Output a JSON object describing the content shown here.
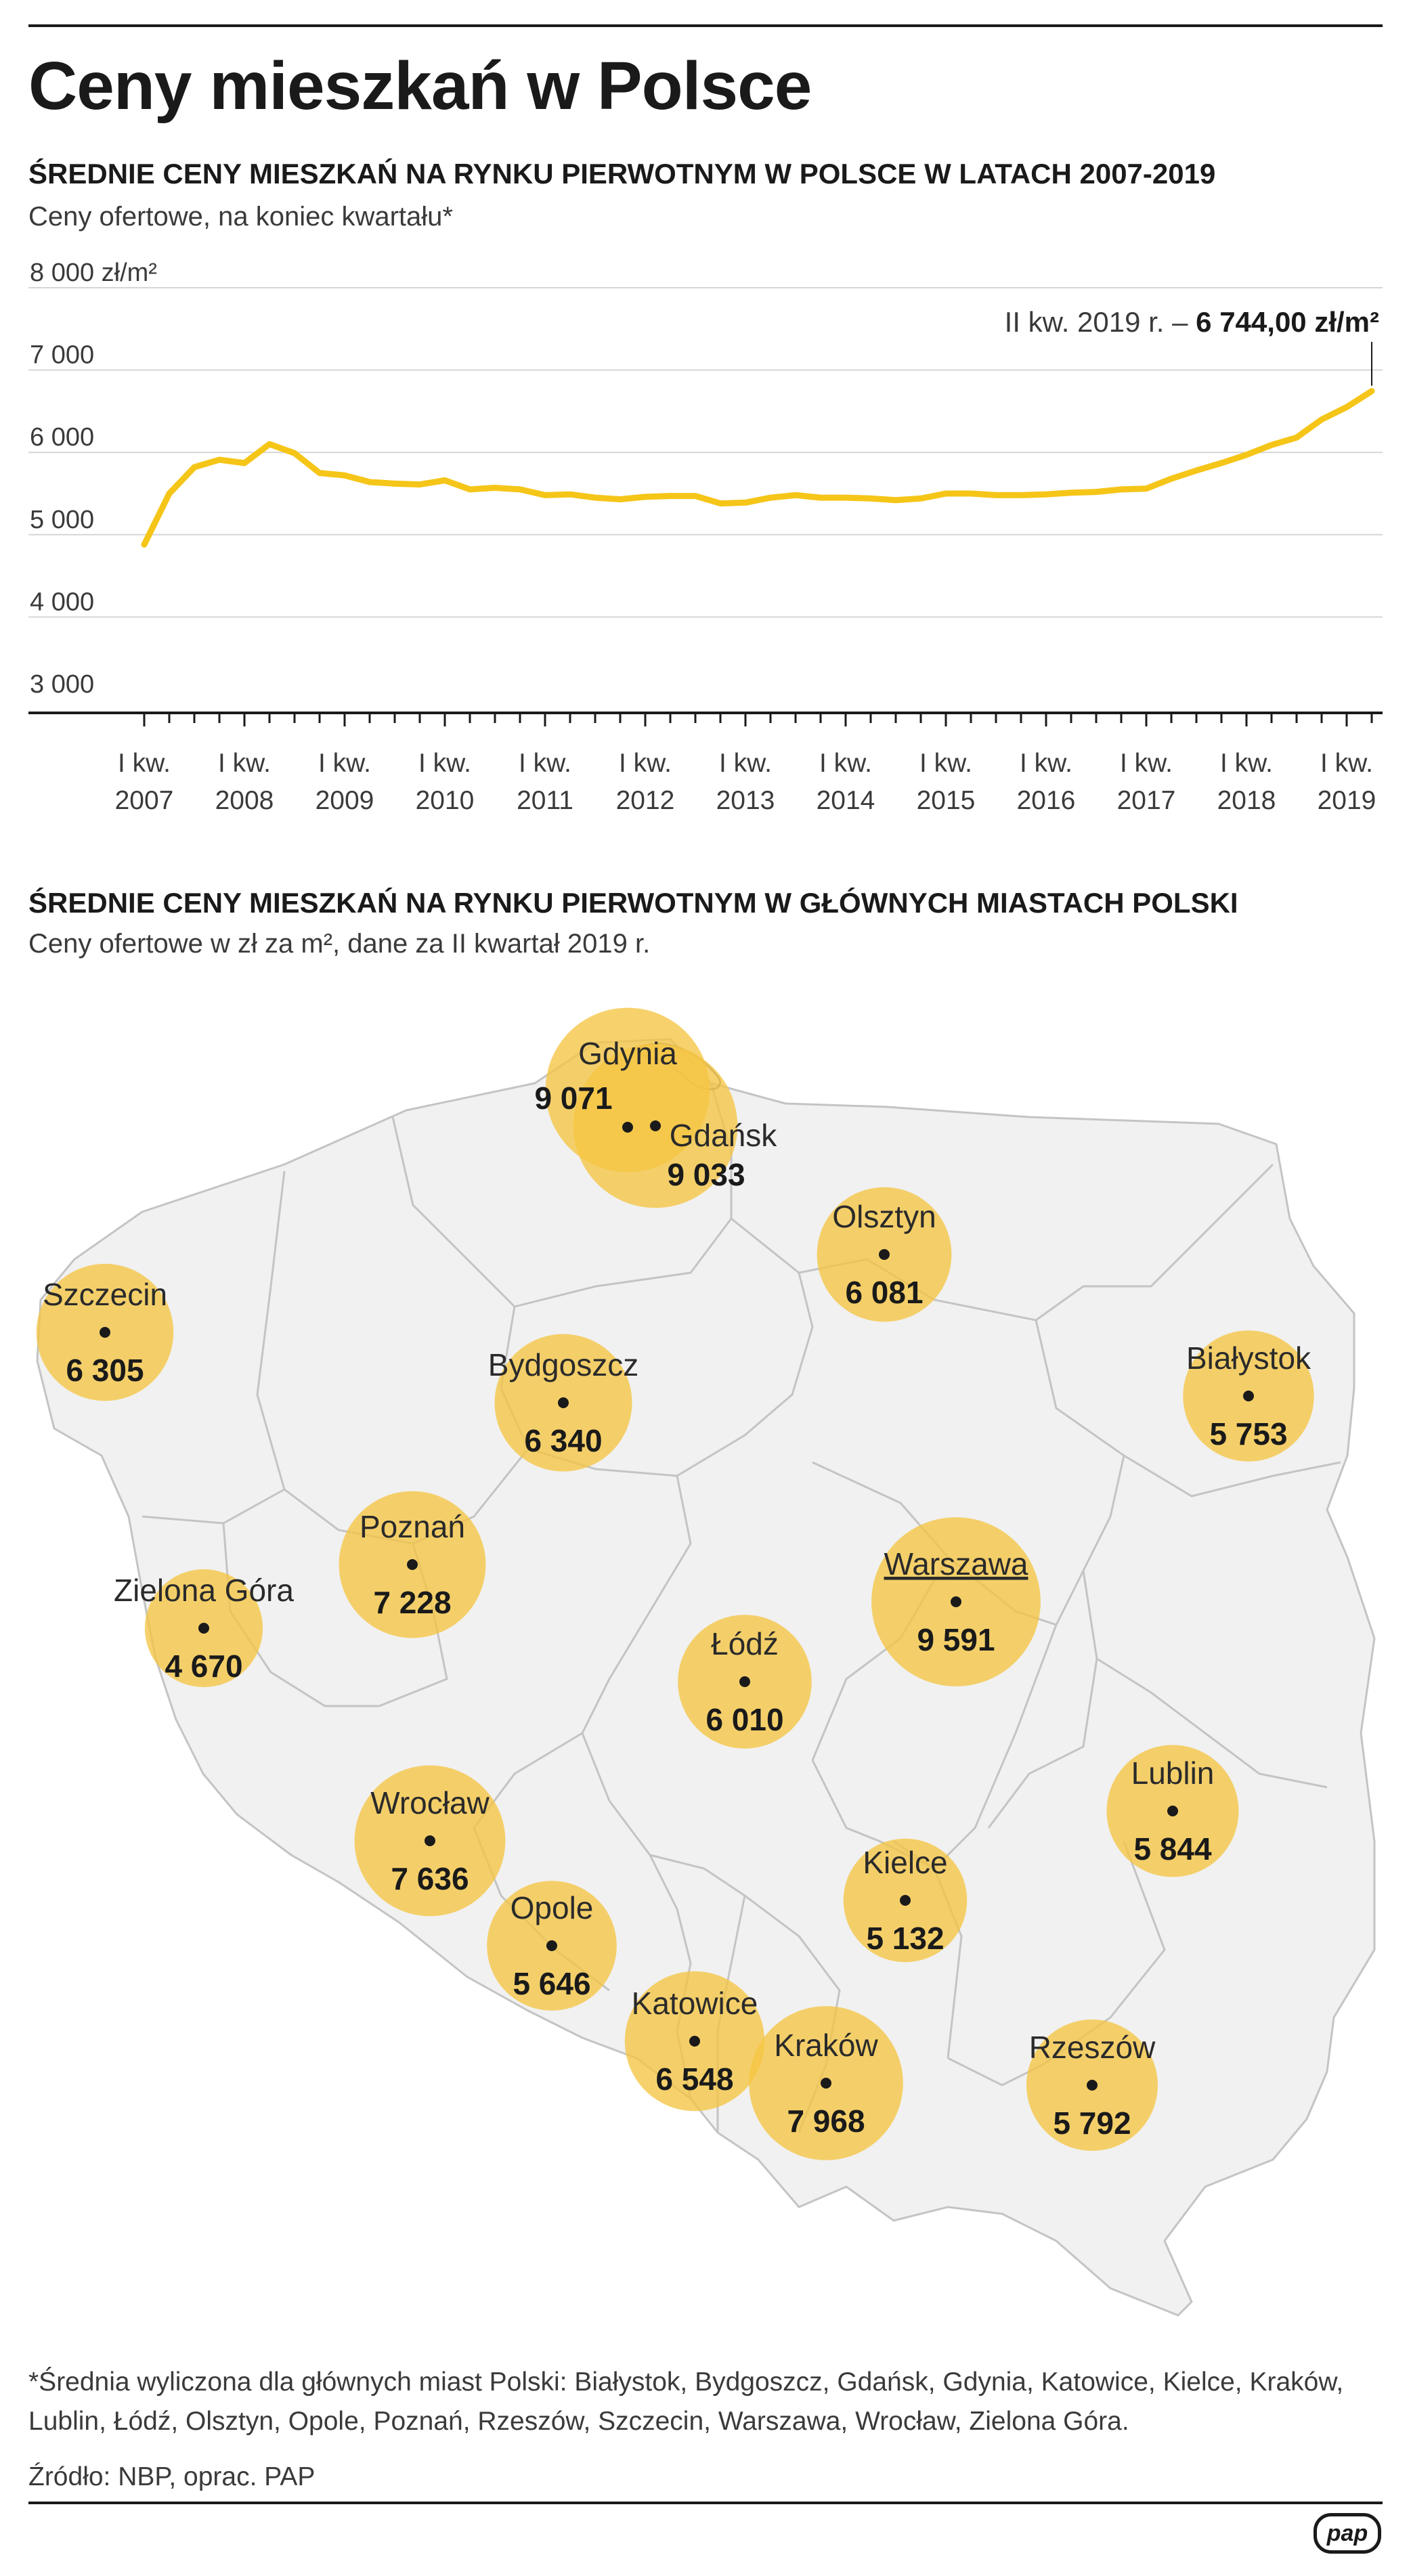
{
  "title": "Ceny mieszkań w Polsce",
  "line_chart": {
    "heading": "ŚREDNIE CENY MIESZKAŃ NA RYNKU PIERWOTNYM W POLSCE W LATACH 2007-2019",
    "subtitle": "Ceny ofertowe, na koniec kwartału*",
    "annotation_prefix": "II kw. 2019 r. – ",
    "annotation_value": "6 744,00 zł/m²",
    "y_tick_labels": [
      "8 000 zł/m²",
      "7 000",
      "6 000",
      "5 000",
      "4 000",
      "3 000"
    ],
    "x_tick_prefix": "I kw.",
    "x_tick_years": [
      "2007",
      "2008",
      "2009",
      "2010",
      "2011",
      "2012",
      "2013",
      "2014",
      "2015",
      "2016",
      "2017",
      "2018",
      "2019"
    ]
  },
  "map_chart": {
    "heading": "ŚREDNIE CENY MIESZKAŃ NA RYNKU PIERWOTNYM W GŁÓWNYCH MIASTACH POLSKI",
    "subtitle": "Ceny ofertowe w zł za m², dane za II kwartał 2019 r."
  },
  "chart_data": [
    {
      "type": "line",
      "title": "ŚREDNIE CENY MIESZKAŃ NA RYNKU PIERWOTNYM W POLSCE W LATACH 2007-2019",
      "ylabel": "zł/m²",
      "ylim": [
        3000,
        8000
      ],
      "yticks": [
        3000,
        4000,
        5000,
        6000,
        7000,
        8000
      ],
      "grid": true,
      "x": [
        "I kw. 2007",
        "II kw. 2007",
        "III kw. 2007",
        "IV kw. 2007",
        "I kw. 2008",
        "II kw. 2008",
        "III kw. 2008",
        "IV kw. 2008",
        "I kw. 2009",
        "II kw. 2009",
        "III kw. 2009",
        "IV kw. 2009",
        "I kw. 2010",
        "II kw. 2010",
        "III kw. 2010",
        "IV kw. 2010",
        "I kw. 2011",
        "II kw. 2011",
        "III kw. 2011",
        "IV kw. 2011",
        "I kw. 2012",
        "II kw. 2012",
        "III kw. 2012",
        "IV kw. 2012",
        "I kw. 2013",
        "II kw. 2013",
        "III kw. 2013",
        "IV kw. 2013",
        "I kw. 2014",
        "II kw. 2014",
        "III kw. 2014",
        "IV kw. 2014",
        "I kw. 2015",
        "II kw. 2015",
        "III kw. 2015",
        "IV kw. 2015",
        "I kw. 2016",
        "II kw. 2016",
        "III kw. 2016",
        "IV kw. 2016",
        "I kw. 2017",
        "II kw. 2017",
        "III kw. 2017",
        "IV kw. 2017",
        "I kw. 2018",
        "II kw. 2018",
        "III kw. 2018",
        "IV kw. 2018",
        "I kw. 2019",
        "II kw. 2019"
      ],
      "series": [
        {
          "name": "",
          "color": "#f5c518",
          "values": [
            4880,
            5500,
            5820,
            5910,
            5870,
            6100,
            5990,
            5750,
            5720,
            5640,
            5620,
            5610,
            5660,
            5550,
            5570,
            5550,
            5480,
            5490,
            5450,
            5430,
            5460,
            5470,
            5470,
            5380,
            5390,
            5450,
            5480,
            5450,
            5450,
            5440,
            5420,
            5440,
            5500,
            5500,
            5480,
            5480,
            5490,
            5510,
            5520,
            5550,
            5560,
            5680,
            5780,
            5870,
            5970,
            6090,
            6180,
            6400,
            6550,
            6744
          ]
        }
      ]
    },
    {
      "type": "bubble-map",
      "title": "ŚREDNIE CENY MIESZKAŃ NA RYNKU PIERWOTNYM W GŁÓWNYCH MIASTACH POLSKI",
      "unit": "zł za m²",
      "bubble_color": "#f5c542",
      "categories": [
        "Gdynia",
        "Gdańsk",
        "Olsztyn",
        "Szczecin",
        "Bydgoszcz",
        "Białystok",
        "Poznań",
        "Warszawa",
        "Zielona Góra",
        "Łódź",
        "Lublin",
        "Wrocław",
        "Kielce",
        "Opole",
        "Katowice",
        "Kraków",
        "Rzeszów"
      ],
      "values": [
        9071,
        9033,
        6081,
        6305,
        6340,
        5753,
        7228,
        9591,
        4670,
        6010,
        5844,
        7636,
        5132,
        5646,
        6548,
        7968,
        5792
      ],
      "value_labels": [
        "9 071",
        "9 033",
        "6 081",
        "6 305",
        "6 340",
        "5 753",
        "7 228",
        "9 591",
        "4 670",
        "6 010",
        "5 844",
        "7 636",
        "5 132",
        "5 646",
        "6 548",
        "7 968",
        "5 792"
      ]
    }
  ],
  "footnote": "*Średnia wyliczona dla głównych miast Polski: Białystok, Bydgoszcz, Gdańsk, Gdynia, Katowice, Kielce, Kraków, Lublin, Łódź, Olsztyn, Opole, Poznań, Rzeszów, Szczecin, Warszawa, Wrocław, Zielona Góra.",
  "source": "Źródło: NBP, oprac. PAP",
  "logo": "pap"
}
